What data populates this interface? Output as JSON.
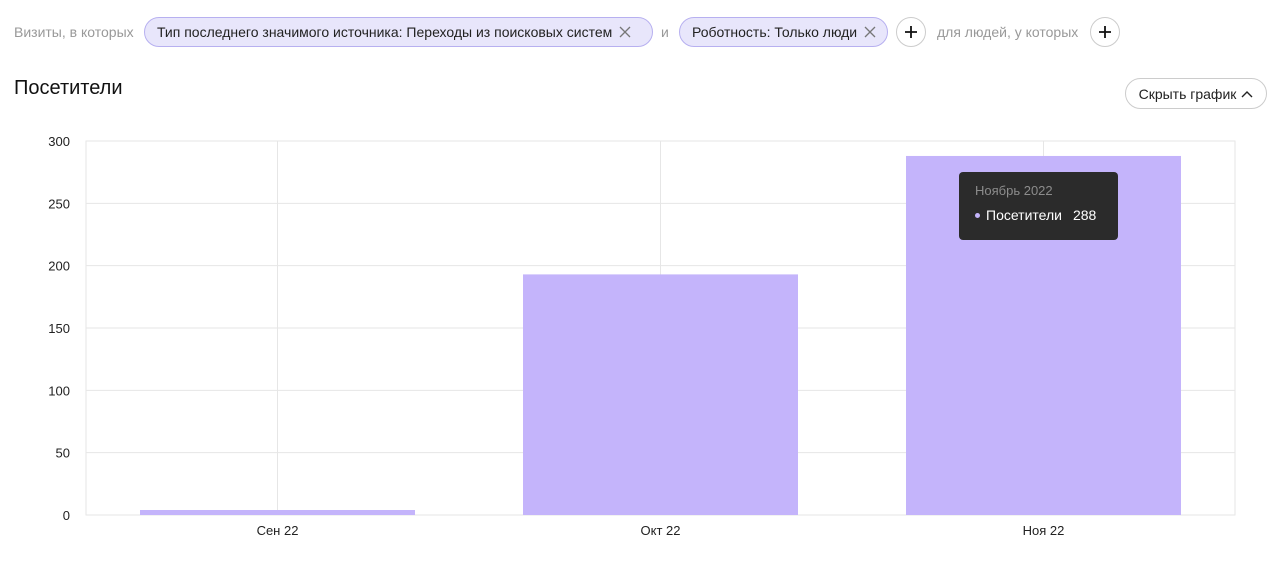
{
  "filters": {
    "prefix_label": "Визиты, в которых",
    "conjunction": "и",
    "people_label": "для людей, у которых",
    "chips": [
      {
        "label": "Тип последнего значимого источника: Переходы из поисковых систем"
      },
      {
        "label": "Роботность: Только люди"
      }
    ]
  },
  "section": {
    "title": "Посетители",
    "hide_chart_label": "Скрыть график"
  },
  "tooltip": {
    "title": "Ноябрь 2022",
    "series_name": "Посетители",
    "value": "288"
  },
  "colors": {
    "bar": "#c4b4fb",
    "grid": "#e6e6e6",
    "chip_bg": "#e8e6fb",
    "chip_border": "#b7b0f0"
  },
  "chart_data": {
    "type": "bar",
    "categories": [
      "Сен 22",
      "Окт 22",
      "Ноя 22"
    ],
    "series": [
      {
        "name": "Посетители",
        "values": [
          4,
          193,
          288
        ]
      }
    ],
    "ylim": [
      0,
      300
    ],
    "yticks": [
      0,
      50,
      100,
      150,
      200,
      250,
      300
    ],
    "grid": true
  }
}
